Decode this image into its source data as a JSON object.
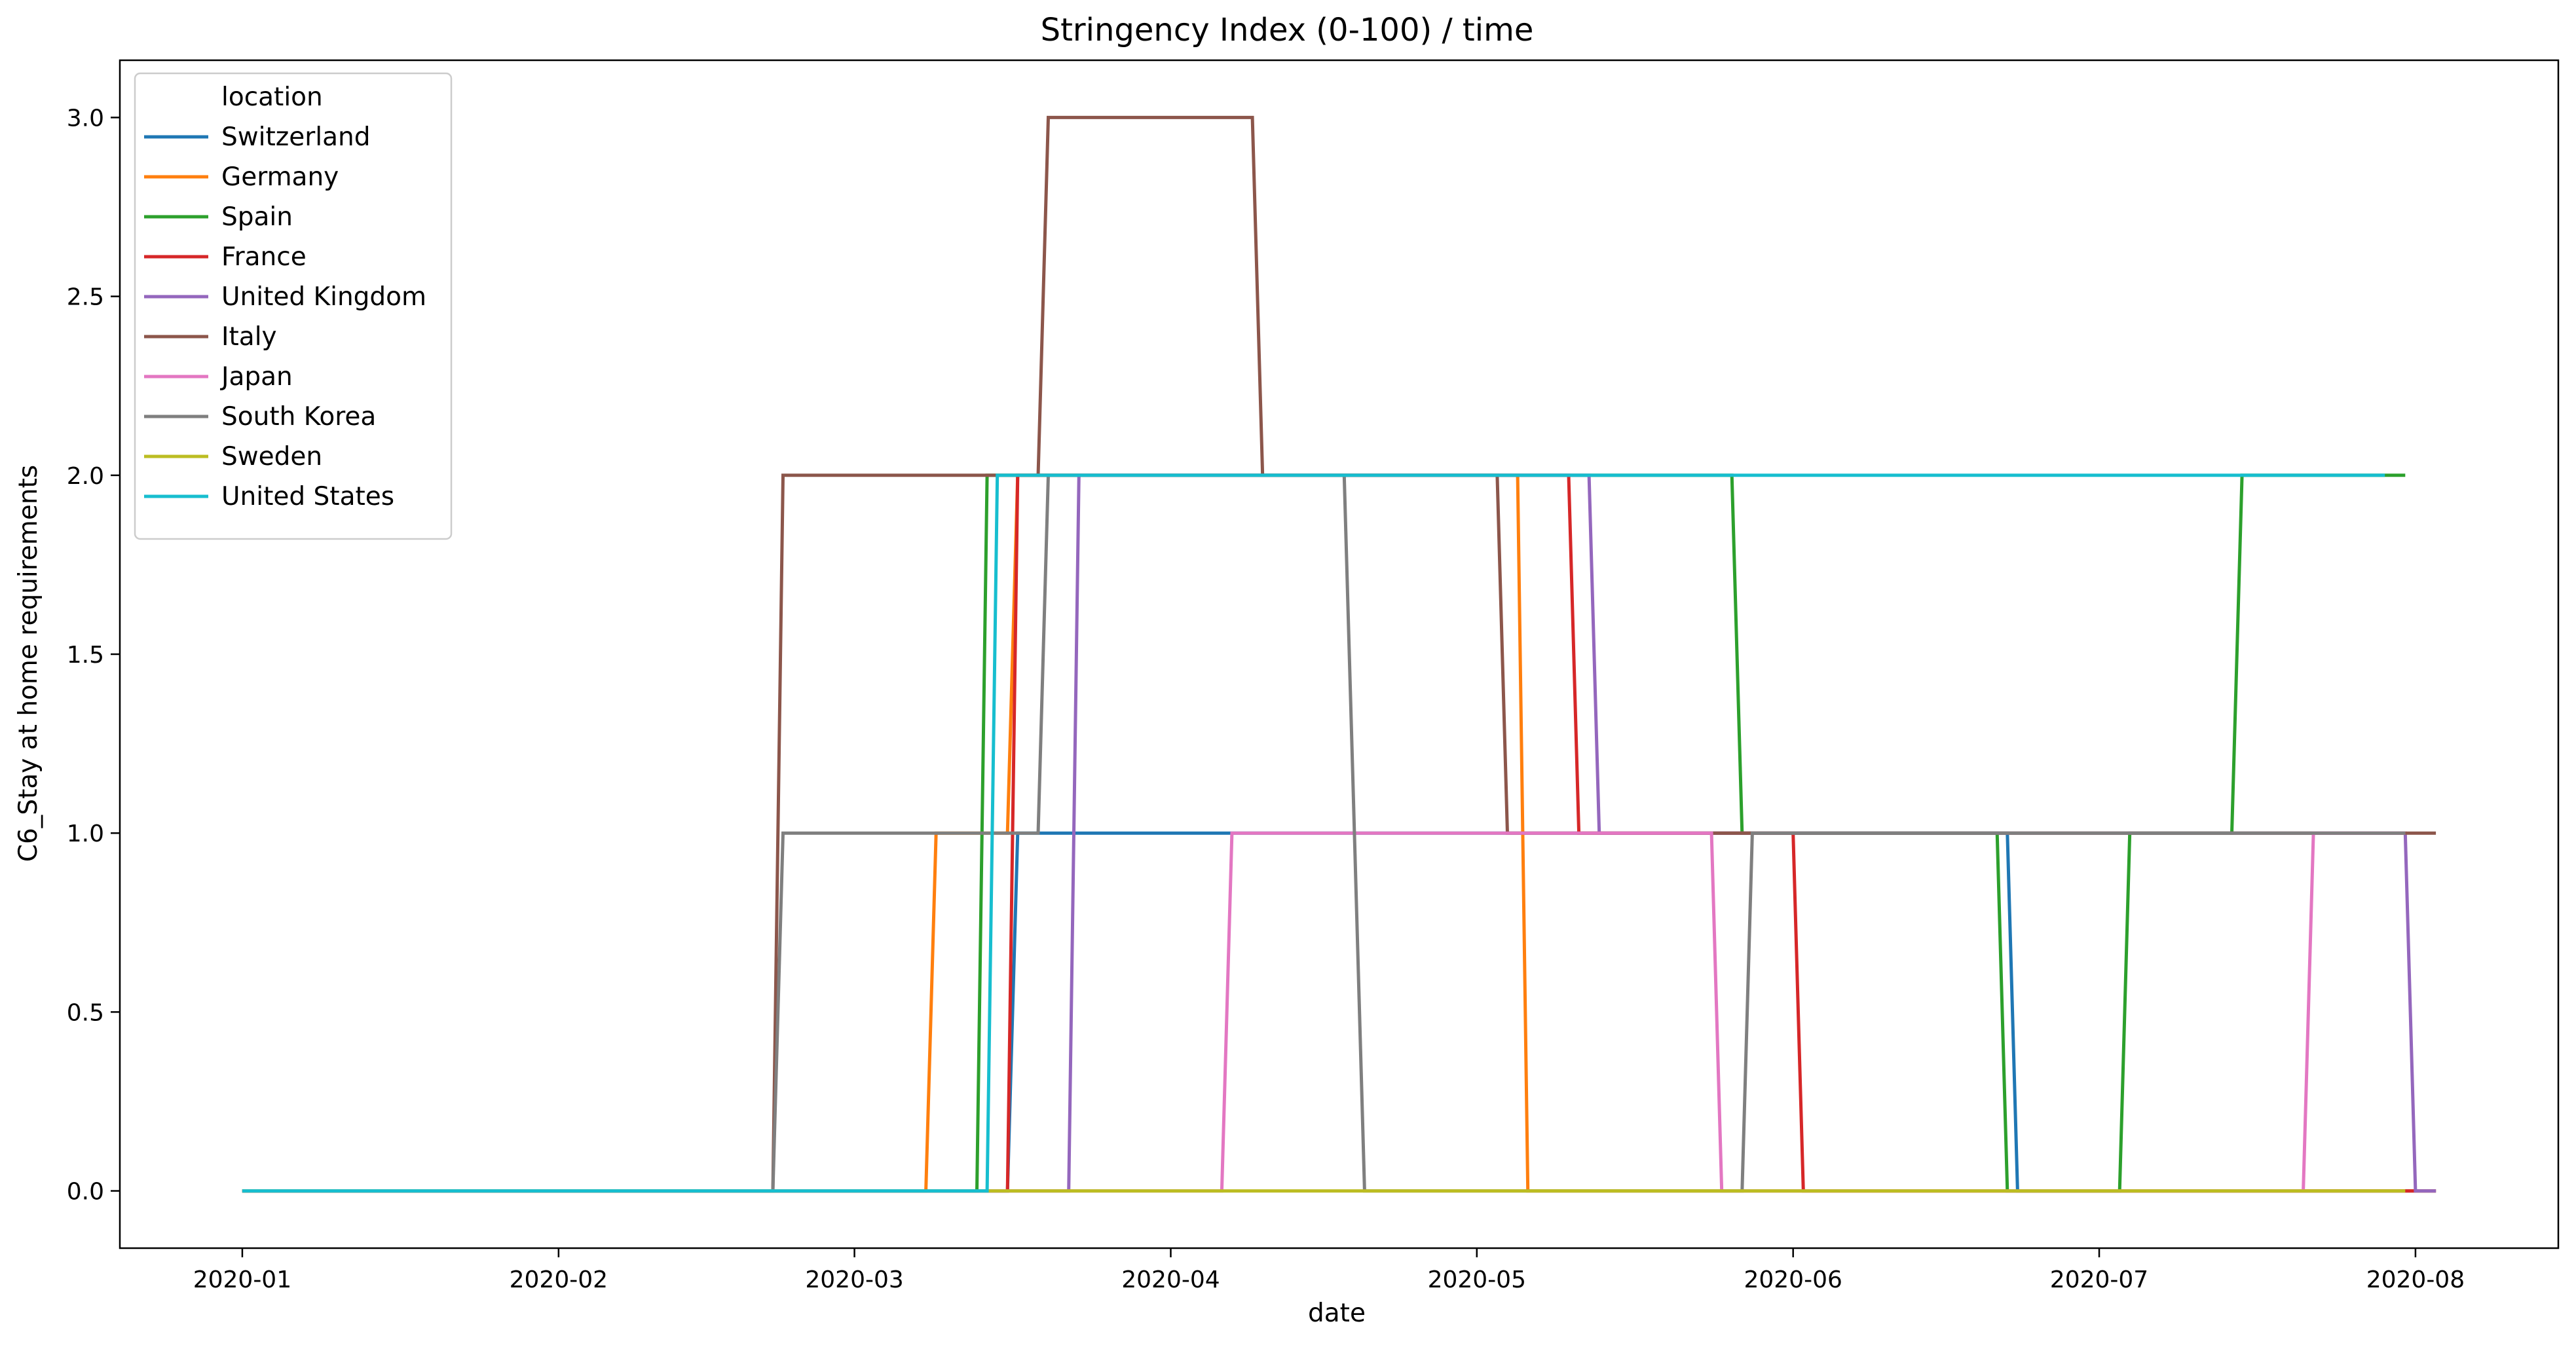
{
  "chart_data": {
    "type": "line",
    "title": "Stringency Index (0-100) / time",
    "xlabel": "date",
    "ylabel": "C6_Stay at home requirements",
    "xlim": [
      "2019-12-20",
      "2020-08-15"
    ],
    "ylim": [
      -0.16,
      3.16
    ],
    "x_ticks": [
      "2020-01",
      "2020-02",
      "2020-03",
      "2020-04",
      "2020-05",
      "2020-06",
      "2020-07",
      "2020-08"
    ],
    "y_ticks": [
      "0.0",
      "0.5",
      "1.0",
      "1.5",
      "2.0",
      "2.5",
      "3.0"
    ],
    "grid": false,
    "legend": {
      "title": "location",
      "placement": "top-left"
    },
    "series": [
      {
        "name": "Switzerland",
        "color": "#1f77b4",
        "points": [
          [
            "2020-01-01",
            0
          ],
          [
            "2020-03-16",
            0
          ],
          [
            "2020-03-17",
            1
          ],
          [
            "2020-06-22",
            1
          ],
          [
            "2020-06-23",
            0
          ],
          [
            "2020-08-03",
            0
          ]
        ]
      },
      {
        "name": "Germany",
        "color": "#ff7f0e",
        "points": [
          [
            "2020-01-01",
            0
          ],
          [
            "2020-03-08",
            0
          ],
          [
            "2020-03-09",
            1
          ],
          [
            "2020-03-16",
            1
          ],
          [
            "2020-03-17",
            2
          ],
          [
            "2020-05-05",
            2
          ],
          [
            "2020-05-06",
            0
          ],
          [
            "2020-08-03",
            0
          ]
        ]
      },
      {
        "name": "Spain",
        "color": "#2ca02c",
        "points": [
          [
            "2020-01-01",
            0
          ],
          [
            "2020-03-13",
            0
          ],
          [
            "2020-03-14",
            2
          ],
          [
            "2020-05-26",
            2
          ],
          [
            "2020-05-27",
            1
          ],
          [
            "2020-06-21",
            1
          ],
          [
            "2020-06-22",
            0
          ],
          [
            "2020-07-03",
            0
          ],
          [
            "2020-07-04",
            1
          ],
          [
            "2020-07-14",
            1
          ],
          [
            "2020-07-15",
            2
          ],
          [
            "2020-07-31",
            2
          ]
        ]
      },
      {
        "name": "France",
        "color": "#d62728",
        "points": [
          [
            "2020-01-01",
            0
          ],
          [
            "2020-03-16",
            0
          ],
          [
            "2020-03-17",
            2
          ],
          [
            "2020-05-10",
            2
          ],
          [
            "2020-05-11",
            1
          ],
          [
            "2020-06-01",
            1
          ],
          [
            "2020-06-02",
            0
          ],
          [
            "2020-08-03",
            0
          ]
        ]
      },
      {
        "name": "United Kingdom",
        "color": "#9467bd",
        "points": [
          [
            "2020-01-01",
            0
          ],
          [
            "2020-03-22",
            0
          ],
          [
            "2020-03-23",
            2
          ],
          [
            "2020-05-12",
            2
          ],
          [
            "2020-05-13",
            1
          ],
          [
            "2020-07-31",
            1
          ],
          [
            "2020-08-01",
            0
          ],
          [
            "2020-08-03",
            0
          ]
        ]
      },
      {
        "name": "Italy",
        "color": "#8c564b",
        "points": [
          [
            "2020-01-01",
            0
          ],
          [
            "2020-02-22",
            0
          ],
          [
            "2020-02-23",
            2
          ],
          [
            "2020-03-19",
            2
          ],
          [
            "2020-03-20",
            3
          ],
          [
            "2020-04-09",
            3
          ],
          [
            "2020-04-10",
            2
          ],
          [
            "2020-05-03",
            2
          ],
          [
            "2020-05-04",
            1
          ],
          [
            "2020-08-03",
            1
          ]
        ]
      },
      {
        "name": "Japan",
        "color": "#e377c2",
        "points": [
          [
            "2020-01-01",
            0
          ],
          [
            "2020-04-06",
            0
          ],
          [
            "2020-04-07",
            1
          ],
          [
            "2020-05-24",
            1
          ],
          [
            "2020-05-25",
            0
          ],
          [
            "2020-07-21",
            0
          ],
          [
            "2020-07-22",
            1
          ],
          [
            "2020-07-31",
            1
          ]
        ]
      },
      {
        "name": "South Korea",
        "color": "#7f7f7f",
        "points": [
          [
            "2020-01-01",
            0
          ],
          [
            "2020-02-22",
            0
          ],
          [
            "2020-02-23",
            1
          ],
          [
            "2020-03-19",
            1
          ],
          [
            "2020-03-20",
            2
          ],
          [
            "2020-04-18",
            2
          ],
          [
            "2020-04-19",
            1
          ],
          [
            "2020-04-19",
            1
          ],
          [
            "2020-04-20",
            0
          ],
          [
            "2020-05-27",
            0
          ],
          [
            "2020-05-28",
            1
          ],
          [
            "2020-07-31",
            1
          ]
        ]
      },
      {
        "name": "Sweden",
        "color": "#bcbd22",
        "points": [
          [
            "2020-01-01",
            0
          ],
          [
            "2020-07-31",
            0
          ]
        ]
      },
      {
        "name": "United States",
        "color": "#17becf",
        "points": [
          [
            "2020-01-01",
            0
          ],
          [
            "2020-03-14",
            0
          ],
          [
            "2020-03-15",
            2
          ],
          [
            "2020-07-29",
            2
          ]
        ]
      }
    ]
  }
}
